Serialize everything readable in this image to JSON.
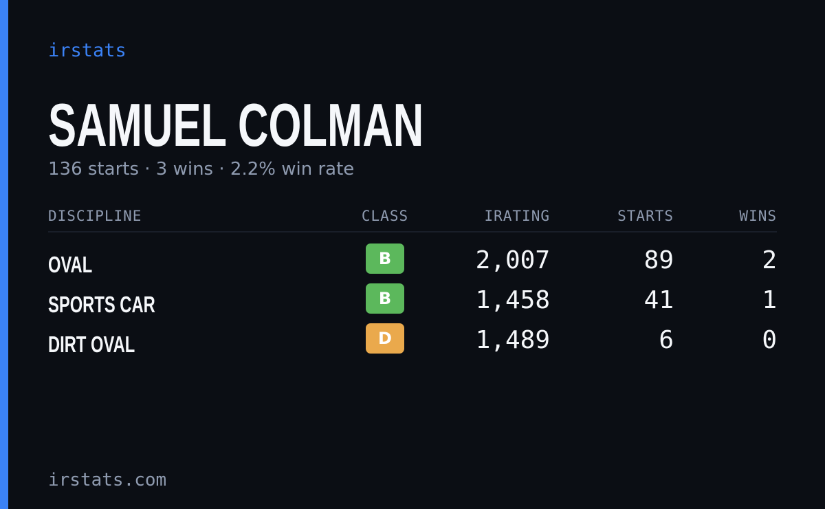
{
  "brand": "irstats",
  "driver": {
    "name": "SAMUEL COLMAN",
    "summary": "136 starts · 3 wins · 2.2% win rate"
  },
  "table": {
    "headers": [
      "DISCIPLINE",
      "CLASS",
      "IRATING",
      "STARTS",
      "WINS"
    ],
    "rows": [
      {
        "discipline": "OVAL",
        "class": "B",
        "class_color": "#5cb85c",
        "irating": "2,007",
        "starts": "89",
        "wins": "2"
      },
      {
        "discipline": "SPORTS CAR",
        "class": "B",
        "class_color": "#5cb85c",
        "irating": "1,458",
        "starts": "41",
        "wins": "1"
      },
      {
        "discipline": "DIRT OVAL",
        "class": "D",
        "class_color": "#eaa94c",
        "irating": "1,489",
        "starts": "6",
        "wins": "0"
      }
    ]
  },
  "footer": "irstats.com"
}
